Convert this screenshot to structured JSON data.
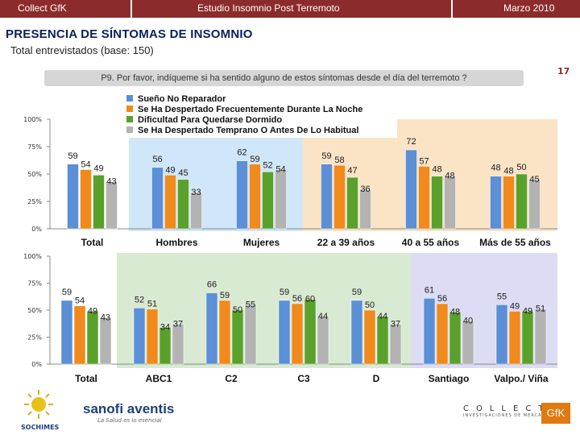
{
  "header": {
    "left": "Collect GfK",
    "center": "Estudio Insomnio Post Terremoto",
    "right": "Marzo 2010"
  },
  "title": "PRESENCIA DE SÍNTOMAS DE INSOMNIO",
  "subtitle": "Total entrevistados (base: 150)",
  "question": "P9. Por favor, indíqueme si ha sentido alguno de estos síntomas desde el día del terremoto ?",
  "page_number": "17",
  "logos": {
    "sochimes": "SOCHIMES",
    "sanofi": "sanofi aventis",
    "sanofi_tagline": "La Salud es lo esencial",
    "collect": "COLLECT",
    "collect_sub": "INVESTIGACIONES DE MERCADO",
    "gfk": "GfK"
  },
  "colors": {
    "series": [
      "#5b8fd6",
      "#f08a1c",
      "#5aa12b",
      "#b3b3b3"
    ],
    "panel_blue": "#cfe7f8",
    "panel_peach": "#fbe3c6",
    "panel_green": "#d9ead2",
    "panel_purple": "#dcdcf5",
    "label_color": "#1a1a1a"
  },
  "chart_data": [
    {
      "type": "bar",
      "title": "",
      "series": [
        {
          "name": "Sueño No Reparador",
          "values": [
            59,
            56,
            62,
            59,
            72,
            48
          ]
        },
        {
          "name": "Se Ha Despertado Frecuentemente Durante La Noche",
          "values": [
            54,
            49,
            59,
            58,
            57,
            48
          ]
        },
        {
          "name": "Dificultad Para Quedarse Dormido",
          "values": [
            49,
            45,
            52,
            47,
            48,
            50
          ]
        },
        {
          "name": "Se Ha Despertado Temprano O Antes De Lo Habitual",
          "values": [
            43,
            33,
            54,
            36,
            48,
            45
          ]
        }
      ],
      "categories": [
        "Total",
        "Hombres",
        "Mujeres",
        "22 a 39 años",
        "40 a 55 años",
        "Más de 55 años"
      ],
      "yticks": [
        "0%",
        "25%",
        "50%",
        "75%",
        "100%"
      ],
      "ylim": [
        0,
        100
      ],
      "legend": "top-center"
    },
    {
      "type": "bar",
      "title": "",
      "series": [
        {
          "name": "Sueño No Reparador",
          "values": [
            59,
            52,
            66,
            59,
            59,
            61,
            55
          ]
        },
        {
          "name": "Se Ha Despertado Frecuentemente Durante La Noche",
          "values": [
            54,
            51,
            59,
            56,
            50,
            56,
            49
          ]
        },
        {
          "name": "Dificultad Para Quedarse Dormido",
          "values": [
            49,
            34,
            50,
            60,
            44,
            48,
            49
          ]
        },
        {
          "name": "Se Ha Despertado Temprano O Antes De Lo Habitual",
          "values": [
            43,
            37,
            55,
            44,
            37,
            40,
            51
          ]
        }
      ],
      "categories": [
        "Total",
        "ABC1",
        "C2",
        "C3",
        "D",
        "Santiago",
        "Valpo./ Viña"
      ],
      "yticks": [
        "0%",
        "25%",
        "50%",
        "75%",
        "100%"
      ],
      "ylim": [
        0,
        100
      ]
    }
  ]
}
